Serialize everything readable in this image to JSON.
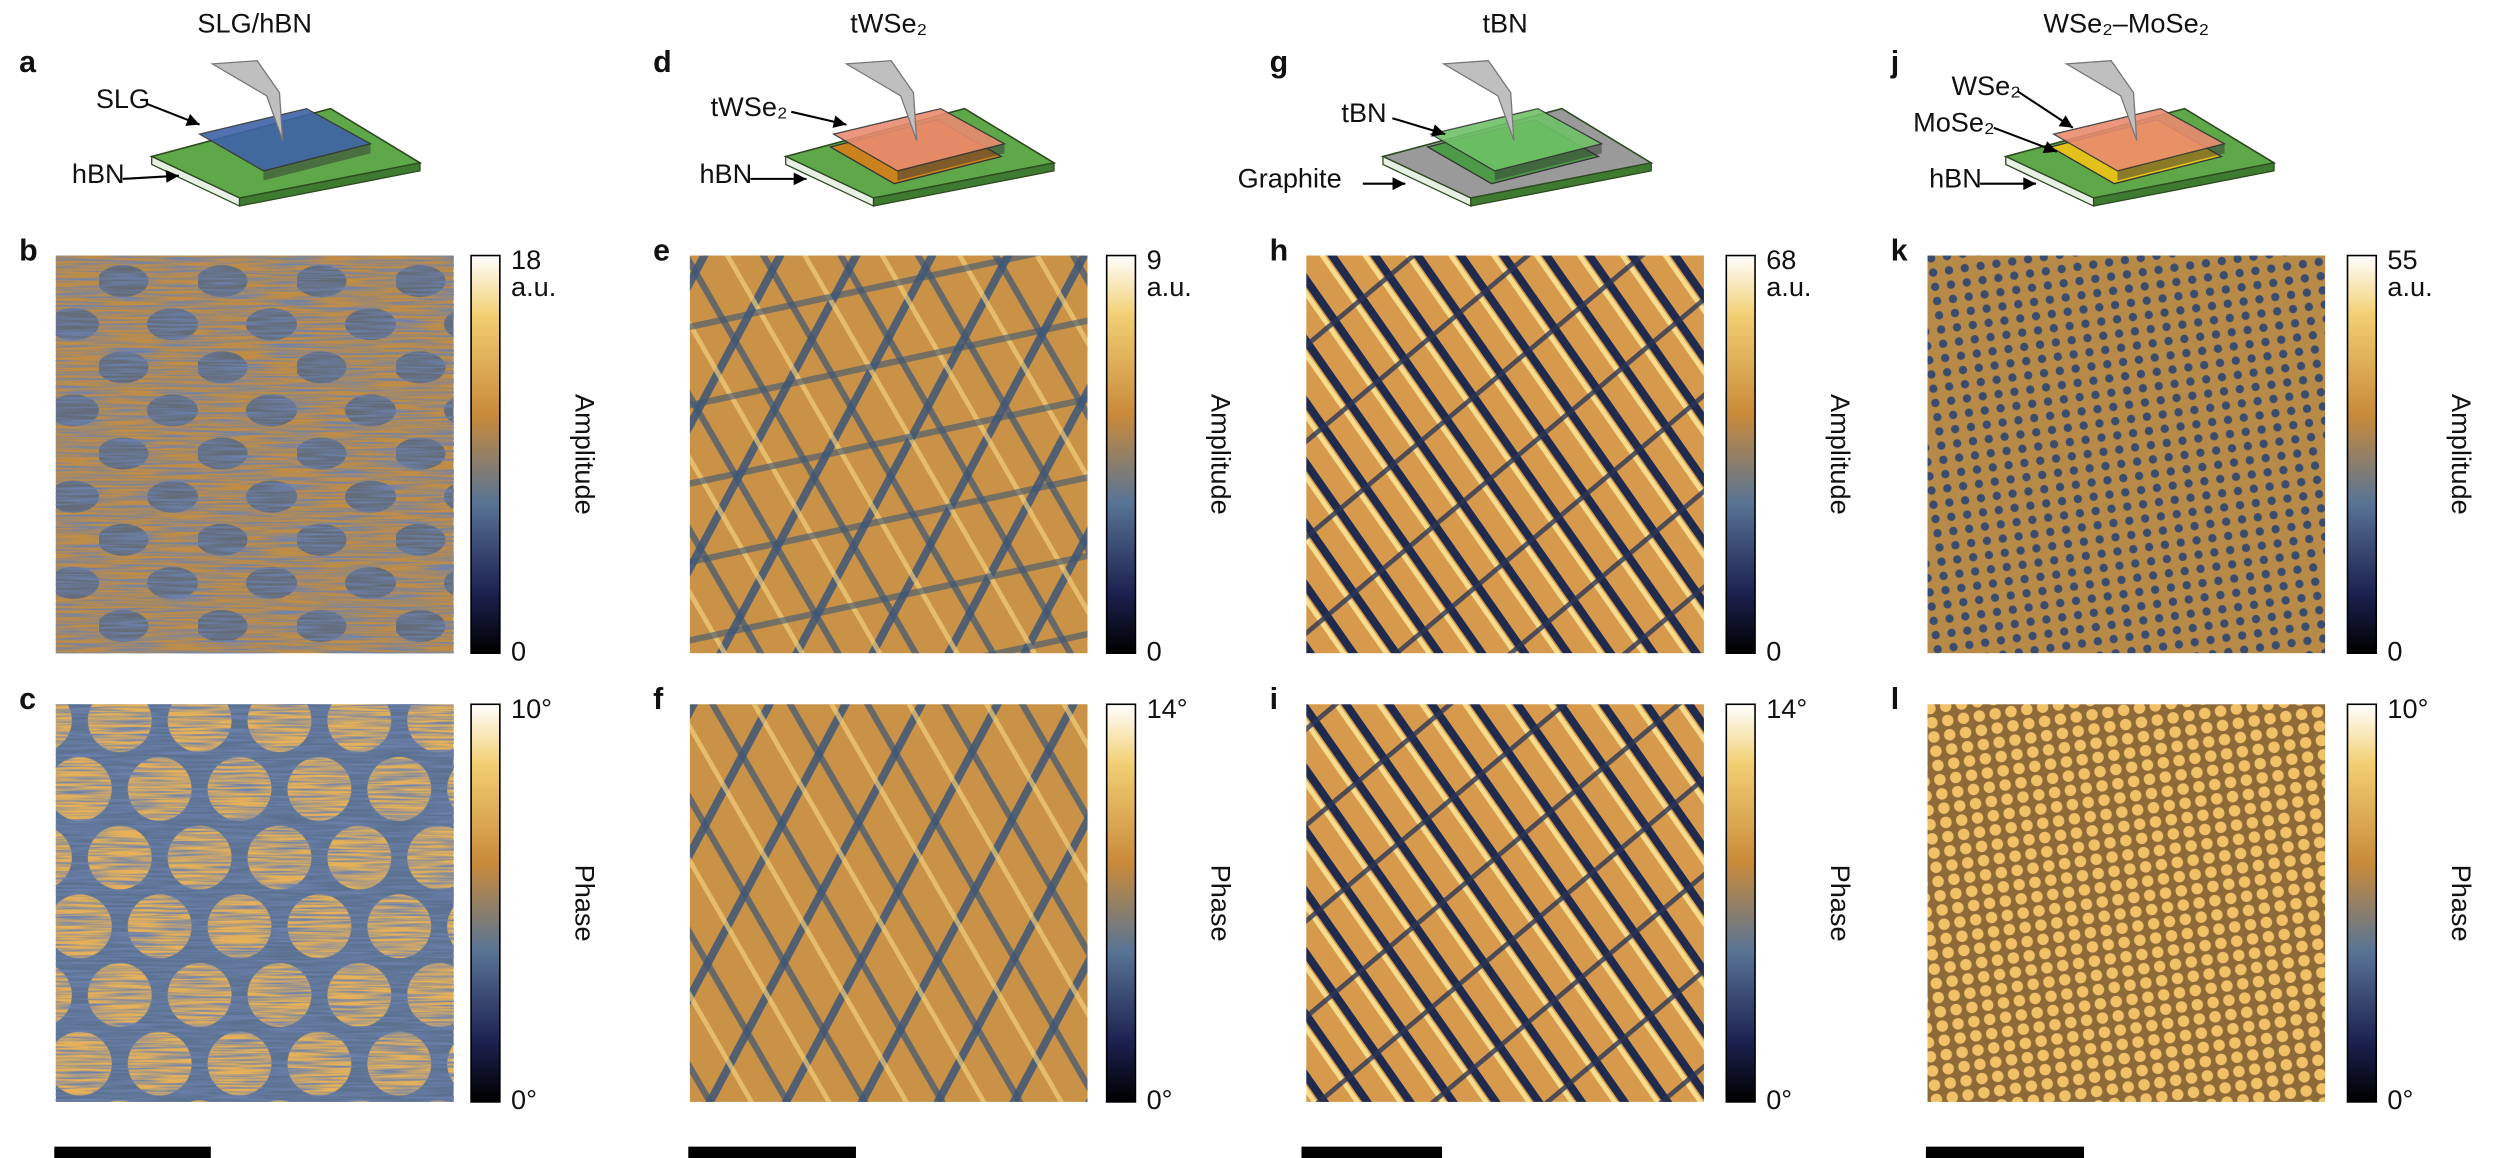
{
  "columns": [
    {
      "title": "SLG/hBN",
      "schematic": {
        "letter": "a",
        "labels": [
          "SLG",
          "hBN"
        ]
      },
      "amplitude": {
        "letter": "b",
        "max": "18",
        "unit": "a.u.",
        "min": "0",
        "label": "Amplitude"
      },
      "phase": {
        "letter": "c",
        "max": "10°",
        "min": "0°",
        "label": "Phase"
      }
    },
    {
      "title": "tWSe₂",
      "schematic": {
        "letter": "d",
        "labels": [
          "tWSe₂",
          "hBN"
        ]
      },
      "amplitude": {
        "letter": "e",
        "max": "9",
        "unit": "a.u.",
        "min": "0",
        "label": "Amplitude"
      },
      "phase": {
        "letter": "f",
        "max": "14°",
        "min": "0°",
        "label": "Phase"
      }
    },
    {
      "title": "tBN",
      "schematic": {
        "letter": "g",
        "labels": [
          "tBN",
          "Graphite"
        ]
      },
      "amplitude": {
        "letter": "h",
        "max": "68",
        "unit": "a.u.",
        "min": "0",
        "label": "Amplitude"
      },
      "phase": {
        "letter": "i",
        "max": "14°",
        "min": "0°",
        "label": "Phase"
      }
    },
    {
      "title": "WSe₂–MoSe₂",
      "schematic": {
        "letter": "j",
        "labels": [
          "WSe₂",
          "MoSe₂",
          "hBN"
        ]
      },
      "amplitude": {
        "letter": "k",
        "max": "55",
        "unit": "a.u.",
        "min": "0",
        "label": "Amplitude"
      },
      "phase": {
        "letter": "l",
        "max": "10°",
        "min": "0°",
        "label": "Phase"
      }
    }
  ]
}
